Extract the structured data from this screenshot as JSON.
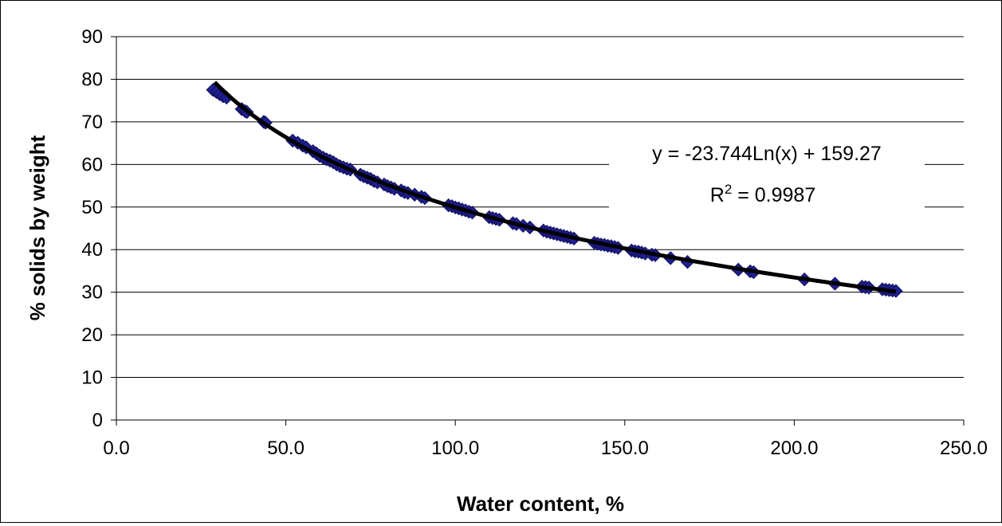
{
  "chart_data": {
    "type": "scatter",
    "title": "",
    "xlabel": "Water content, %",
    "ylabel": "% solids by weight",
    "xlim": [
      0,
      250
    ],
    "ylim": [
      0,
      90
    ],
    "x_ticks": [
      "0.0",
      "50.0",
      "100.0",
      "150.0",
      "200.0",
      "250.0"
    ],
    "y_ticks": [
      "0",
      "10",
      "20",
      "30",
      "40",
      "50",
      "60",
      "70",
      "80",
      "90"
    ],
    "grid": "horizontal",
    "legend": "none",
    "marker_color": "#1f1f8f",
    "trendline_color": "#000000",
    "trendline": {
      "type": "logarithmic",
      "a": -23.744,
      "b": 159.27,
      "x_range": [
        29,
        230
      ],
      "equation": "y = -23.744Ln(x) + 159.27",
      "r2_prefix": "R",
      "r2_exponent": "2",
      "r2_value": " = 0.9987"
    },
    "series": [
      {
        "x": [
          28.5,
          29.5,
          30.5,
          31.5,
          32.5,
          37.0,
          38.0,
          38.5,
          43.5,
          44.0,
          52.0,
          53.5,
          55.0,
          56.0,
          58.0,
          59.0,
          60.0,
          61.0,
          62.0,
          63.0,
          64.0,
          65.0,
          66.0,
          67.0,
          68.0,
          69.0,
          72.0,
          73.0,
          74.0,
          75.0,
          76.0,
          77.0,
          79.0,
          80.0,
          81.0,
          82.0,
          84.0,
          85.0,
          86.0,
          88.0,
          90.0,
          91.0,
          98.0,
          99.0,
          100.0,
          101.0,
          102.0,
          103.0,
          104.0,
          105.0,
          110.0,
          111.0,
          112.0,
          113.0,
          117.0,
          118.0,
          120.0,
          122.0,
          126.0,
          127.0,
          128.0,
          129.0,
          130.0,
          131.0,
          132.0,
          133.0,
          134.0,
          135.0,
          141.0,
          142.0,
          143.0,
          144.0,
          145.0,
          146.0,
          147.0,
          148.0,
          152.0,
          153.0,
          154.0,
          155.0,
          156.0,
          158.0,
          159.0,
          163.5,
          168.5,
          183.5,
          187.0,
          188.0,
          203.0,
          212.0,
          220.0,
          221.0,
          222.0,
          226.0,
          227.0,
          228.0,
          229.0,
          230.0
        ],
        "y": [
          77.5,
          77.0,
          76.5,
          76.0,
          75.7,
          73.0,
          72.5,
          72.3,
          70.0,
          69.8,
          65.6,
          65.1,
          64.4,
          64.0,
          63.1,
          62.6,
          62.0,
          61.6,
          61.2,
          60.9,
          60.5,
          60.0,
          59.6,
          59.3,
          59.0,
          58.8,
          57.6,
          57.2,
          56.9,
          56.6,
          56.1,
          55.8,
          55.3,
          54.9,
          54.6,
          54.3,
          53.9,
          53.5,
          53.3,
          52.9,
          52.4,
          52.1,
          50.4,
          50.2,
          49.9,
          49.7,
          49.4,
          49.2,
          48.9,
          48.7,
          47.6,
          47.4,
          47.2,
          47.0,
          46.2,
          46.0,
          45.6,
          45.2,
          44.5,
          44.2,
          44.0,
          43.8,
          43.6,
          43.4,
          43.2,
          43.0,
          42.8,
          42.6,
          41.6,
          41.4,
          41.2,
          41.1,
          40.9,
          40.8,
          40.6,
          40.4,
          39.8,
          39.6,
          39.5,
          39.3,
          39.1,
          38.8,
          38.7,
          38.0,
          37.1,
          35.3,
          34.9,
          34.7,
          33.0,
          32.0,
          31.3,
          31.2,
          31.1,
          30.7,
          30.6,
          30.5,
          30.4,
          30.3
        ]
      }
    ]
  }
}
